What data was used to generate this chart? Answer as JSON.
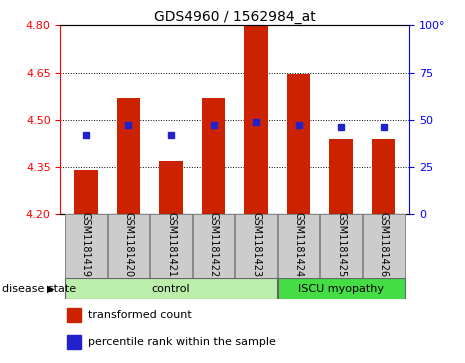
{
  "title": "GDS4960 / 1562984_at",
  "samples": [
    "GSM1181419",
    "GSM1181420",
    "GSM1181421",
    "GSM1181422",
    "GSM1181423",
    "GSM1181424",
    "GSM1181425",
    "GSM1181426"
  ],
  "transformed_count": [
    4.34,
    4.57,
    4.37,
    4.57,
    4.8,
    4.645,
    4.44,
    4.44
  ],
  "percentile_rank": [
    42,
    47,
    42,
    47,
    49,
    47,
    46,
    46
  ],
  "ylim_left": [
    4.2,
    4.8
  ],
  "yticks_left": [
    4.2,
    4.35,
    4.5,
    4.65,
    4.8
  ],
  "yticks_right": [
    0,
    25,
    50,
    75,
    100
  ],
  "bar_bottom": 4.2,
  "bar_color": "#cc2200",
  "dot_color": "#2222cc",
  "groups": [
    {
      "label": "control",
      "indices": [
        0,
        1,
        2,
        3,
        4
      ],
      "color": "#bbeeaa"
    },
    {
      "label": "ISCU myopathy",
      "indices": [
        5,
        6,
        7
      ],
      "color": "#44dd44"
    }
  ],
  "disease_state_label": "disease state",
  "legend_items": [
    {
      "label": "transformed count",
      "color": "#cc2200"
    },
    {
      "label": "percentile rank within the sample",
      "color": "#2222cc"
    }
  ],
  "title_fontsize": 10,
  "tick_fontsize": 8,
  "sample_label_fontsize": 7,
  "disease_fontsize": 8,
  "legend_fontsize": 8
}
